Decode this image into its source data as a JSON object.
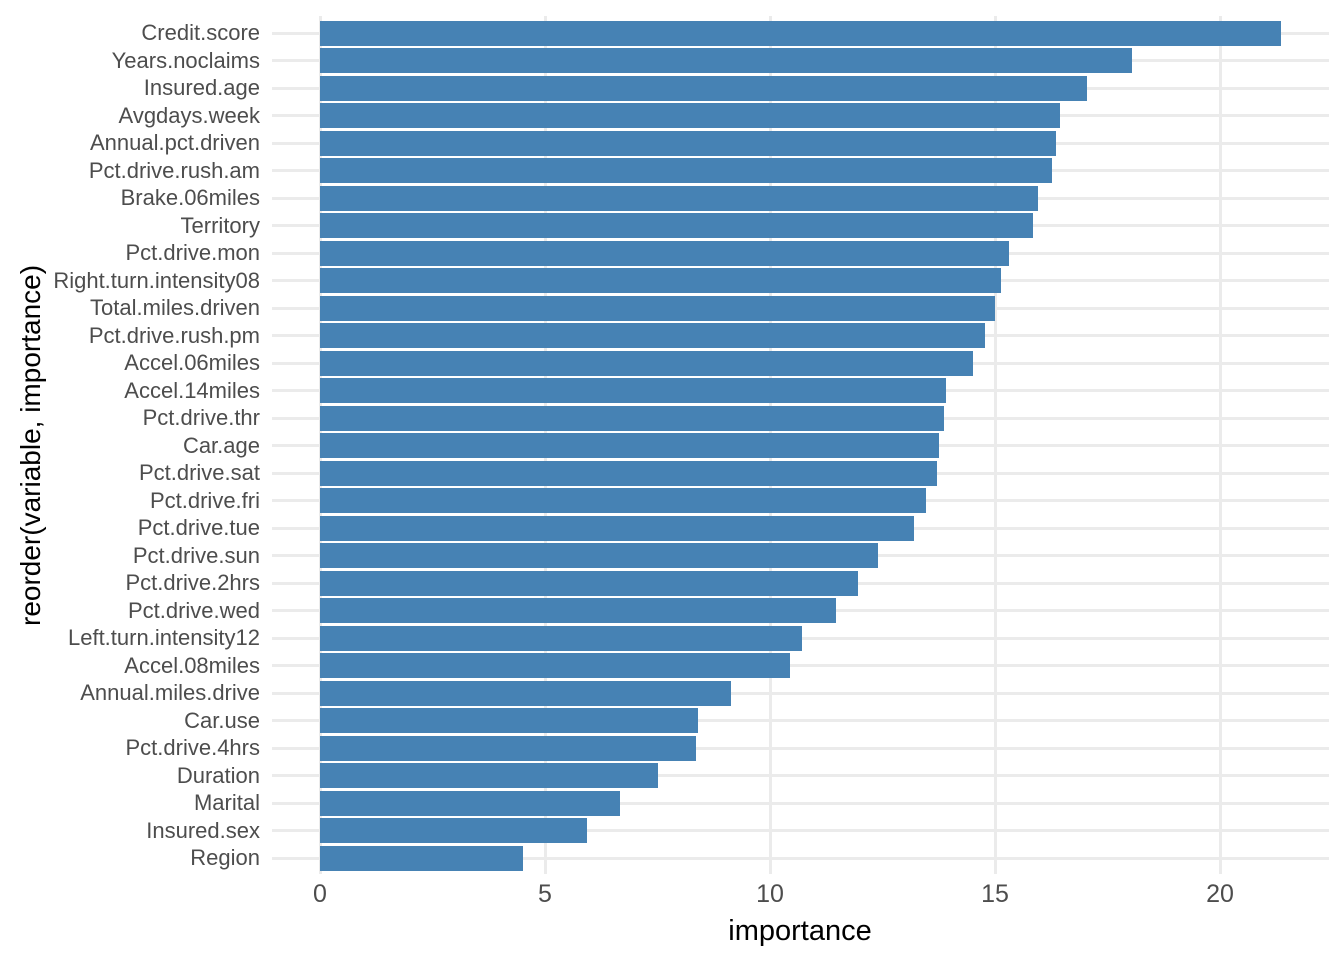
{
  "figure": {
    "background": "#ffffff",
    "bar_color": "#4682b4",
    "grid_color": "#ebebeb",
    "axis_text_color": "#4d4d4d",
    "axis_title_color": "#000000"
  },
  "chart_data": {
    "type": "bar",
    "orientation": "horizontal",
    "title": "",
    "xlabel": "importance",
    "ylabel": "reorder(variable, importance)",
    "xlim": [
      0,
      22.5
    ],
    "x_major_ticks": [
      0,
      5,
      10,
      15,
      20
    ],
    "grid": true,
    "legend": false,
    "sorted": "descending",
    "categories": [
      "Credit.score",
      "Years.noclaims",
      "Insured.age",
      "Avgdays.week",
      "Annual.pct.driven",
      "Pct.drive.rush.am",
      "Brake.06miles",
      "Territory",
      "Pct.drive.mon",
      "Right.turn.intensity08",
      "Total.miles.driven",
      "Pct.drive.rush.pm",
      "Accel.06miles",
      "Accel.14miles",
      "Pct.drive.thr",
      "Car.age",
      "Pct.drive.sat",
      "Pct.drive.fri",
      "Pct.drive.tue",
      "Pct.drive.sun",
      "Pct.drive.2hrs",
      "Pct.drive.wed",
      "Left.turn.intensity12",
      "Accel.08miles",
      "Annual.miles.drive",
      "Car.use",
      "Pct.drive.4hrs",
      "Duration",
      "Marital",
      "Insured.sex",
      "Region"
    ],
    "values": [
      21.35,
      18.05,
      17.05,
      16.45,
      16.35,
      16.27,
      15.95,
      15.85,
      15.3,
      15.13,
      15.0,
      14.77,
      14.5,
      13.9,
      13.86,
      13.76,
      13.7,
      13.47,
      13.21,
      12.4,
      11.96,
      11.47,
      10.7,
      10.44,
      9.14,
      8.41,
      8.36,
      7.5,
      6.67,
      5.93,
      4.51
    ]
  }
}
